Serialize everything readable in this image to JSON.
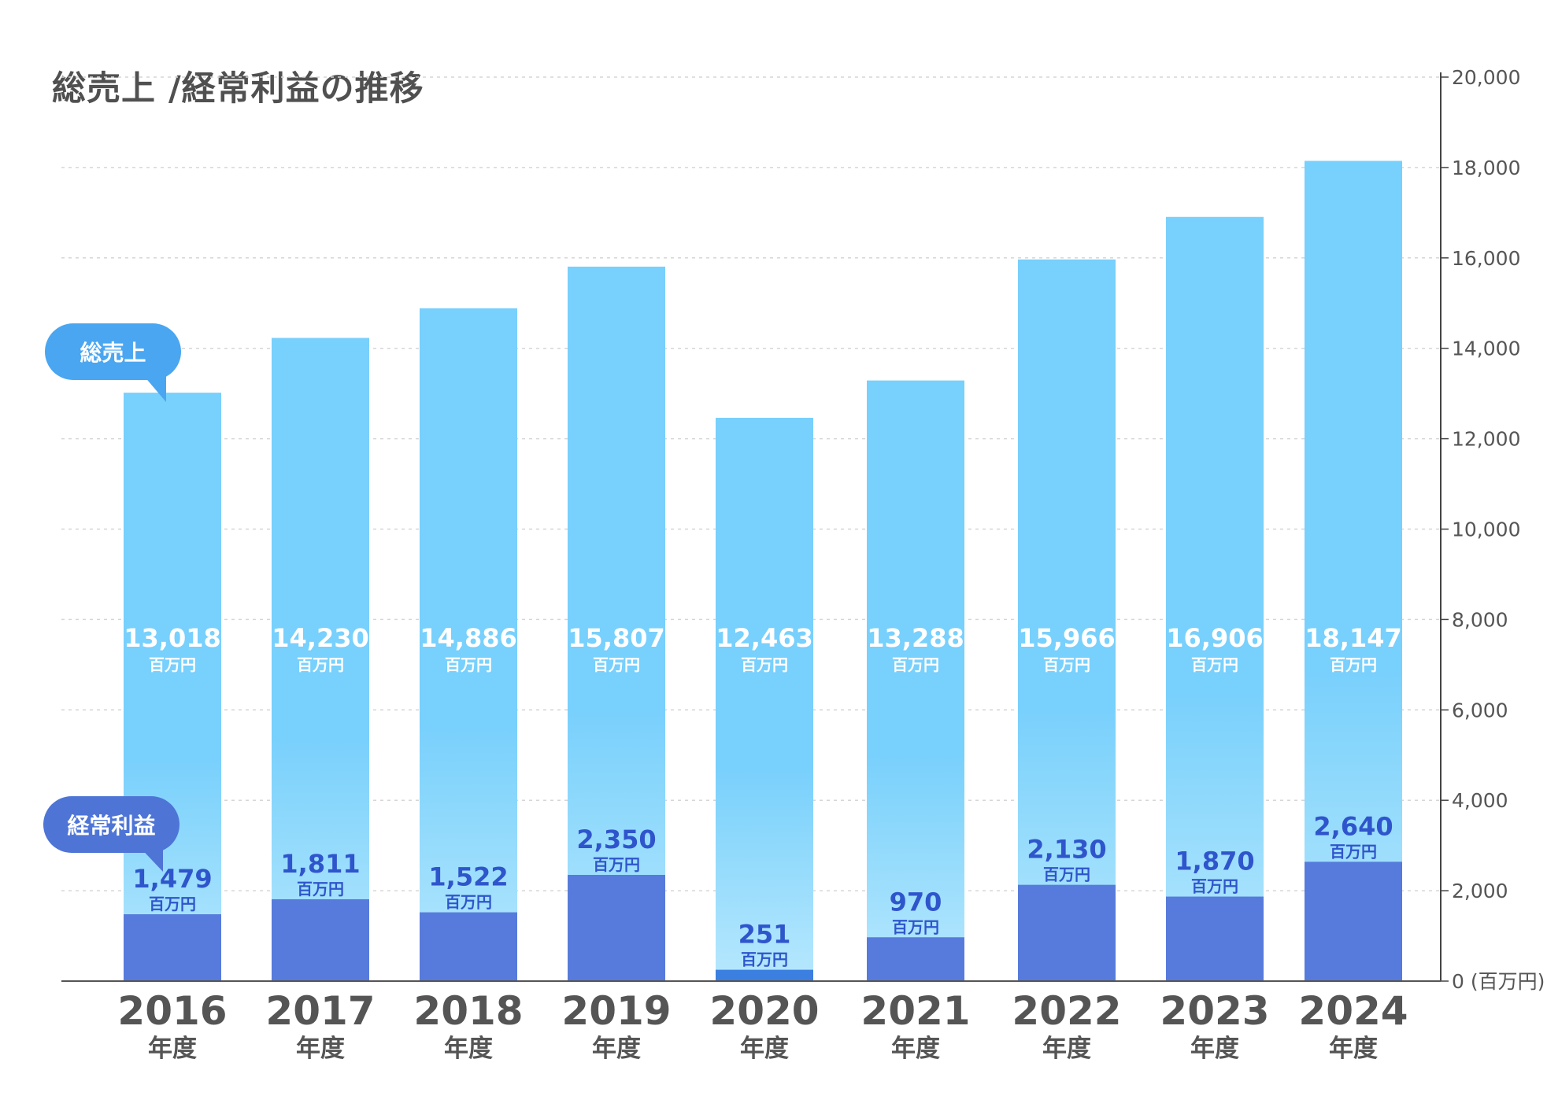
{
  "chart_data": {
    "type": "bar",
    "title": "総売上 /経常利益の推移",
    "categories": [
      "2016",
      "2017",
      "2018",
      "2019",
      "2020",
      "2021",
      "2022",
      "2023",
      "2024"
    ],
    "category_suffix": "年度",
    "series": [
      {
        "name": "総売上",
        "values": [
          13018,
          14230,
          14886,
          15807,
          12463,
          13288,
          15966,
          16906,
          18147
        ],
        "color": "#78d0fc"
      },
      {
        "name": "経常利益",
        "values": [
          1479,
          1811,
          1522,
          2350,
          251,
          970,
          2130,
          1870,
          2640
        ],
        "color": "#577bdc"
      }
    ],
    "value_labels": {
      "sales": [
        "13,018",
        "14,230",
        "14,886",
        "15,807",
        "12,463",
        "13,288",
        "15,966",
        "16,906",
        "18,147"
      ],
      "profit": [
        "1,479",
        "1,811",
        "1,522",
        "2,350",
        "251",
        "970",
        "2,130",
        "1,870",
        "2,640"
      ]
    },
    "unit_label": "百万円",
    "ylim": [
      0,
      20000
    ],
    "yticks": [
      "0",
      "2,000",
      "4,000",
      "6,000",
      "8,000",
      "10,000",
      "12,000",
      "14,000",
      "16,000",
      "18,000",
      "20,000"
    ],
    "y_unit": "(百万円)",
    "ylabel": "",
    "xlabel": "",
    "grid": true,
    "y_axis_side": "right",
    "colors": {
      "sales_bar": "#78d0fc",
      "sales_bar_bottom": "#b7e8fd",
      "profit_bar": "#577bdc",
      "profit_bar_2020": "#3b7fe0",
      "sales_label": "#ffffff",
      "profit_label": "#2f55cc",
      "axis_text": "#555555",
      "grid": "#d6d6d6"
    }
  },
  "callouts": {
    "sales": "総売上",
    "profit": "経常利益"
  }
}
